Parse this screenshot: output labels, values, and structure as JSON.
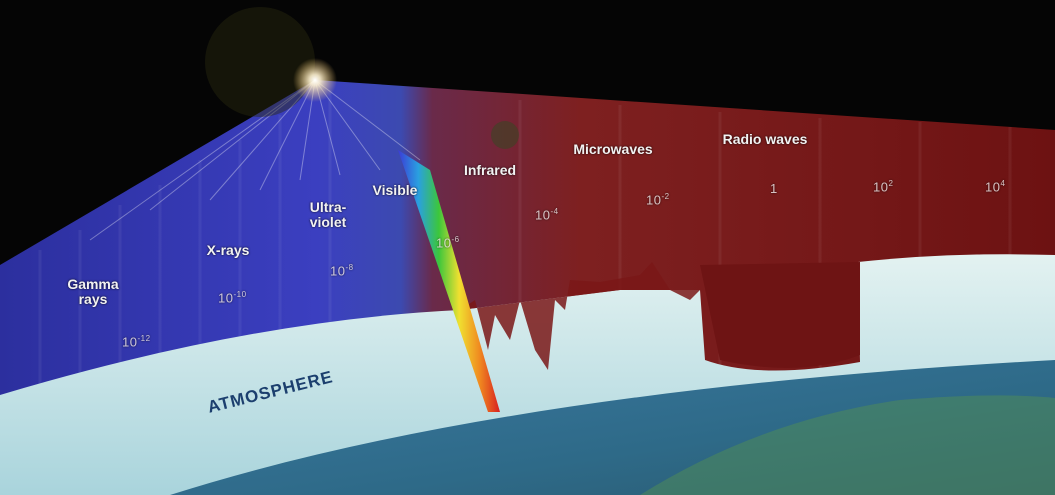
{
  "bands": [
    {
      "id": "gamma",
      "line1": "Gamma",
      "line2": "rays",
      "wavelength_base": "10",
      "wavelength_exp": "-12"
    },
    {
      "id": "xrays",
      "line1": "X-rays",
      "line2": "",
      "wavelength_base": "10",
      "wavelength_exp": "-10"
    },
    {
      "id": "uv",
      "line1": "Ultra-",
      "line2": "violet",
      "wavelength_base": "10",
      "wavelength_exp": "-8"
    },
    {
      "id": "visible",
      "line1": "Visible",
      "line2": "",
      "wavelength_base": "10",
      "wavelength_exp": "-6"
    },
    {
      "id": "infrared",
      "line1": "Infrared",
      "line2": "",
      "wavelength_base": "10",
      "wavelength_exp": "-4"
    },
    {
      "id": "microwaves",
      "line1": "Microwaves",
      "line2": "",
      "wavelength_base": "10",
      "wavelength_exp": "-2"
    },
    {
      "id": "radio",
      "line1": "Radio waves",
      "line2": "",
      "wavelength_base": "1",
      "wavelength_exp": ""
    }
  ],
  "radio_extra": [
    {
      "base": "10",
      "exp": "2"
    },
    {
      "base": "10",
      "exp": "4"
    }
  ],
  "atmosphere_label": "ATMOSPHERE",
  "colors": {
    "gamma_blue": "#3a3db8",
    "radio_red": "#7a1414",
    "atmosphere": "#cfe7ea",
    "earth": "#2f6b8f"
  }
}
